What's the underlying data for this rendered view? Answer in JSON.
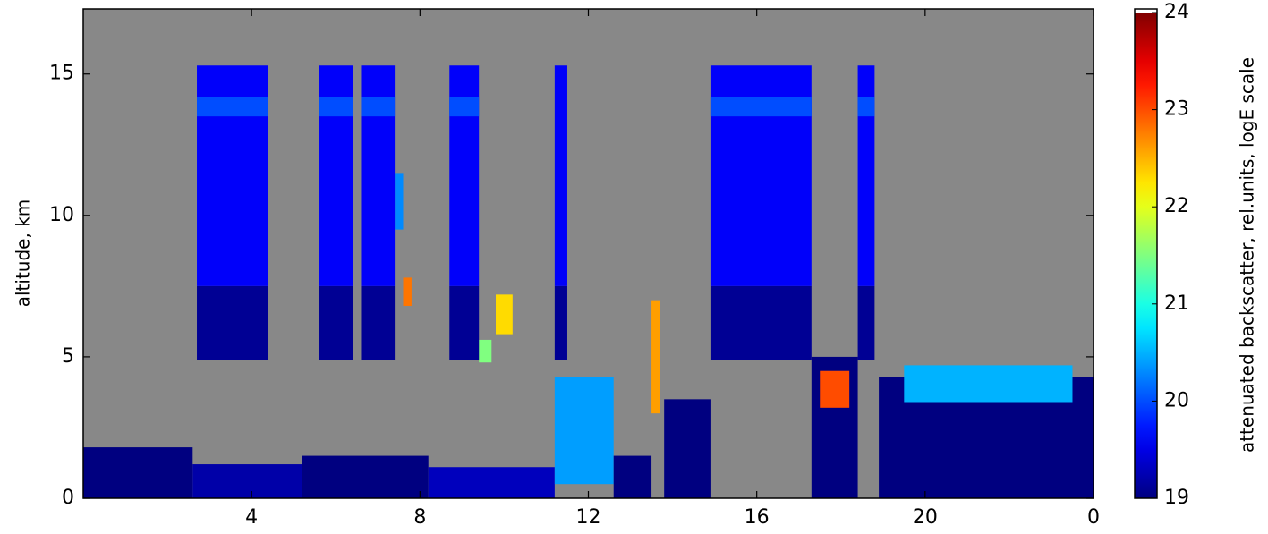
{
  "chart_data": {
    "type": "heatmap",
    "y_label": "altitude, km",
    "colorbar_label": "attenuated backscatter, rel.units, logE scale",
    "xlim": [
      0,
      24
    ],
    "xticks": [
      4,
      8,
      12,
      16,
      20,
      {
        "value": 24,
        "label": "0"
      }
    ],
    "ylim": [
      0,
      17.3
    ],
    "yticks": [
      0,
      5,
      10,
      15
    ],
    "clim": [
      19,
      24
    ],
    "cticks": [
      19,
      20,
      21,
      22,
      23,
      24
    ],
    "colormap": "jet",
    "missing_color": "#888888",
    "cells": [
      [
        0,
        2.6,
        0,
        1.8,
        19
      ],
      [
        2.6,
        5.2,
        0,
        1.2,
        19.2
      ],
      [
        5.2,
        8.2,
        0,
        1.5,
        19
      ],
      [
        8.2,
        11.2,
        0,
        1.1,
        19.3
      ],
      [
        11.2,
        12.6,
        0.5,
        4.3,
        20.4
      ],
      [
        12.6,
        13.5,
        0,
        1.5,
        19
      ],
      [
        13.5,
        13.7,
        3,
        7,
        22.6
      ],
      [
        13.8,
        14.9,
        0,
        3.5,
        19
      ],
      [
        17.3,
        18.4,
        0,
        5,
        19
      ],
      [
        17.5,
        18.2,
        3.2,
        4.5,
        23
      ],
      [
        18.9,
        24,
        0,
        4.3,
        19
      ],
      [
        19.5,
        23.5,
        3.4,
        4.7,
        20.5
      ],
      [
        7.6,
        7.8,
        6.8,
        7.8,
        22.8
      ],
      [
        7.4,
        7.6,
        9.5,
        11.5,
        20.3
      ],
      [
        9.8,
        10.2,
        5.8,
        7.2,
        22.3
      ],
      [
        9.4,
        9.7,
        4.8,
        5.6,
        21.5
      ],
      [
        2.7,
        4.4,
        4.9,
        7.5,
        19.1
      ],
      [
        2.7,
        4.4,
        7.5,
        15.3,
        19.6
      ],
      [
        2.7,
        4.4,
        13.5,
        14.2,
        20
      ],
      [
        5.6,
        6.4,
        4.9,
        7.5,
        19.1
      ],
      [
        5.6,
        6.4,
        7.5,
        15.3,
        19.6
      ],
      [
        5.6,
        6.4,
        13.5,
        14.2,
        20
      ],
      [
        6.6,
        7.4,
        4.9,
        7.5,
        19.1
      ],
      [
        6.6,
        7.4,
        7.5,
        15.3,
        19.6
      ],
      [
        6.6,
        7.4,
        13.5,
        14.2,
        20
      ],
      [
        8.7,
        9.4,
        4.9,
        7.5,
        19.1
      ],
      [
        8.7,
        9.4,
        7.5,
        15.3,
        19.6
      ],
      [
        8.7,
        9.4,
        13.5,
        14.2,
        20
      ],
      [
        11.2,
        11.5,
        4.9,
        7.5,
        19.1
      ],
      [
        11.2,
        11.5,
        7.5,
        15.3,
        19.6
      ],
      [
        14.9,
        17.3,
        4.9,
        7.5,
        19.1
      ],
      [
        14.9,
        17.3,
        7.5,
        15.3,
        19.6
      ],
      [
        14.9,
        17.3,
        13.5,
        14.2,
        20
      ],
      [
        18.4,
        18.8,
        4.9,
        7.5,
        19.1
      ],
      [
        18.4,
        18.8,
        7.5,
        15.3,
        19.6
      ],
      [
        18.4,
        18.8,
        13.5,
        14.2,
        20
      ]
    ]
  }
}
